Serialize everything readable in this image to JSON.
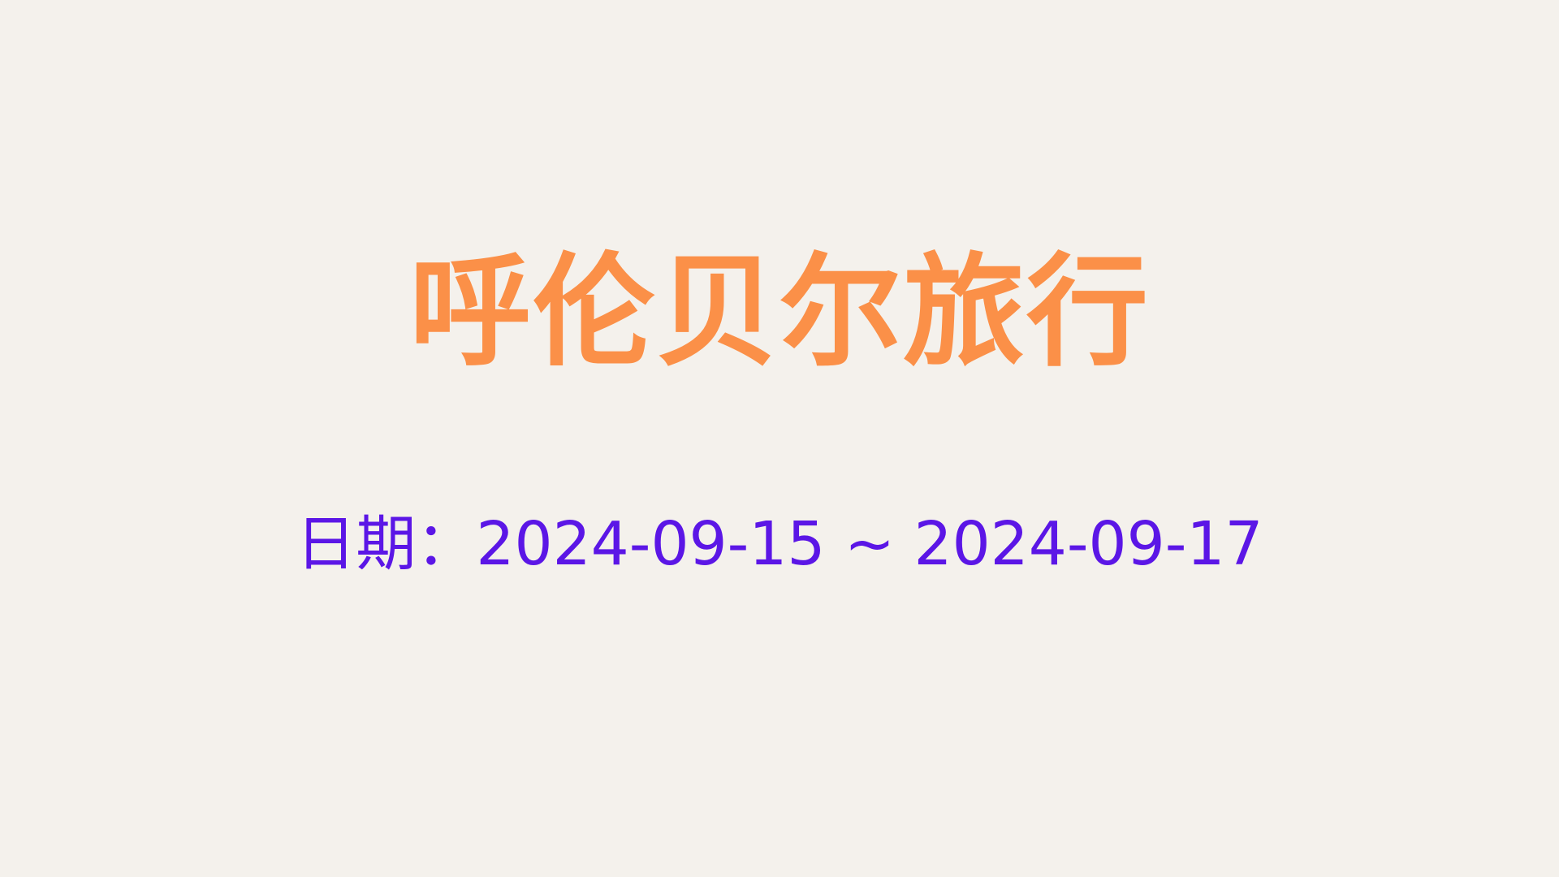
{
  "slide": {
    "title": "呼伦贝尔旅行",
    "date_line": "日期：2024-09-15 ~ 2024-09-17"
  },
  "colors": {
    "background": "#f4f1ec",
    "title": "#fb9048",
    "date": "#5b16e6"
  }
}
